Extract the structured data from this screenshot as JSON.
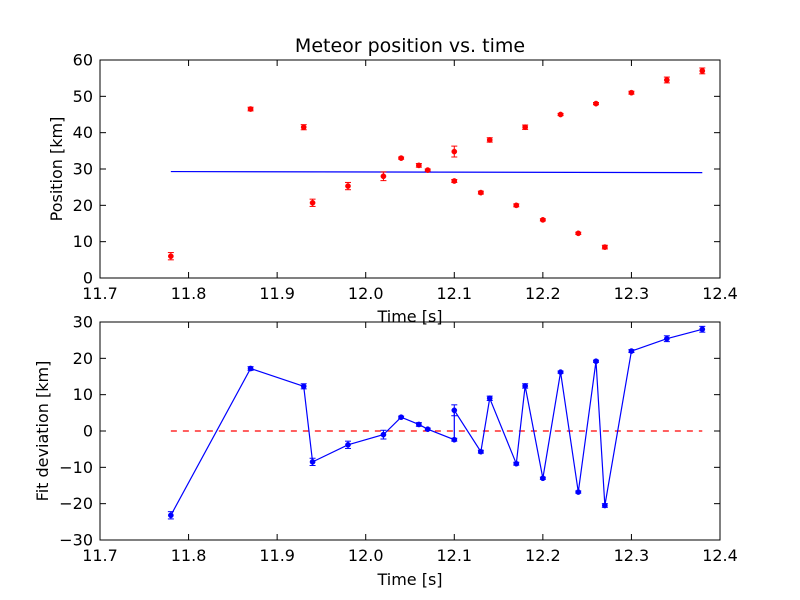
{
  "chart_data": [
    {
      "type": "scatter",
      "title": "Meteor position vs. time",
      "xlabel": "Time [s]",
      "ylabel": "Position [km]",
      "xlim": [
        11.7,
        12.4
      ],
      "ylim": [
        0,
        60
      ],
      "xticks": [
        "11.7",
        "11.8",
        "11.9",
        "12.0",
        "12.1",
        "12.2",
        "12.3",
        "12.4"
      ],
      "yticks": [
        "0",
        "10",
        "20",
        "30",
        "40",
        "50",
        "60"
      ],
      "grid": false,
      "points_color": "#ff0000",
      "fit_color": "#0000ff",
      "points": [
        {
          "x": 11.78,
          "y": 6.0,
          "err": 1.0
        },
        {
          "x": 11.87,
          "y": 46.5,
          "err": 0.5
        },
        {
          "x": 11.93,
          "y": 41.5,
          "err": 0.7
        },
        {
          "x": 11.94,
          "y": 20.7,
          "err": 1.0
        },
        {
          "x": 11.98,
          "y": 25.3,
          "err": 1.0
        },
        {
          "x": 12.02,
          "y": 28.0,
          "err": 1.2
        },
        {
          "x": 12.04,
          "y": 33.0,
          "err": 0.3
        },
        {
          "x": 12.06,
          "y": 31.0,
          "err": 0.5
        },
        {
          "x": 12.07,
          "y": 29.7,
          "err": 0.3
        },
        {
          "x": 12.1,
          "y": 34.8,
          "err": 1.5
        },
        {
          "x": 12.1,
          "y": 26.7,
          "err": 0.4
        },
        {
          "x": 12.13,
          "y": 23.5,
          "err": 0.4
        },
        {
          "x": 12.14,
          "y": 38.0,
          "err": 0.6
        },
        {
          "x": 12.17,
          "y": 20.0,
          "err": 0.4
        },
        {
          "x": 12.18,
          "y": 41.5,
          "err": 0.6
        },
        {
          "x": 12.2,
          "y": 16.0,
          "err": 0.3
        },
        {
          "x": 12.22,
          "y": 45.0,
          "err": 0.3
        },
        {
          "x": 12.24,
          "y": 12.3,
          "err": 0.3
        },
        {
          "x": 12.26,
          "y": 48.0,
          "err": 0.3
        },
        {
          "x": 12.27,
          "y": 8.5,
          "err": 0.5
        },
        {
          "x": 12.3,
          "y": 51.0,
          "err": 0.4
        },
        {
          "x": 12.34,
          "y": 54.5,
          "err": 0.8
        },
        {
          "x": 12.38,
          "y": 57.0,
          "err": 0.8
        }
      ],
      "fit_line": {
        "x": [
          11.78,
          12.38
        ],
        "y": [
          29.3,
          29.0
        ]
      }
    },
    {
      "type": "line",
      "xlabel": "Time [s]",
      "ylabel": "Fit deviation [km]",
      "xlim": [
        11.7,
        12.4
      ],
      "ylim": [
        -30,
        30
      ],
      "xticks": [
        "11.7",
        "11.8",
        "11.9",
        "12.0",
        "12.1",
        "12.2",
        "12.3",
        "12.4"
      ],
      "yticks": [
        "−30",
        "−20",
        "−10",
        "0",
        "10",
        "20",
        "30"
      ],
      "grid": false,
      "line_color": "#0000ff",
      "zero_color": "#ff0000",
      "points": [
        {
          "x": 11.78,
          "y": -23.2,
          "err": 1.0
        },
        {
          "x": 11.87,
          "y": 17.2,
          "err": 0.5
        },
        {
          "x": 11.93,
          "y": 12.3,
          "err": 0.7
        },
        {
          "x": 11.94,
          "y": -8.5,
          "err": 1.0
        },
        {
          "x": 11.98,
          "y": -3.8,
          "err": 1.0
        },
        {
          "x": 12.02,
          "y": -1.0,
          "err": 1.2
        },
        {
          "x": 12.04,
          "y": 3.8,
          "err": 0.3
        },
        {
          "x": 12.06,
          "y": 1.8,
          "err": 0.5
        },
        {
          "x": 12.07,
          "y": 0.5,
          "err": 0.3
        },
        {
          "x": 12.1,
          "y": -2.4,
          "err": 0.4
        },
        {
          "x": 12.1,
          "y": 5.7,
          "err": 1.5
        },
        {
          "x": 12.13,
          "y": -5.7,
          "err": 0.4
        },
        {
          "x": 12.14,
          "y": 9.0,
          "err": 0.6
        },
        {
          "x": 12.17,
          "y": -9.0,
          "err": 0.4
        },
        {
          "x": 12.18,
          "y": 12.4,
          "err": 0.6
        },
        {
          "x": 12.2,
          "y": -13.0,
          "err": 0.3
        },
        {
          "x": 12.22,
          "y": 16.2,
          "err": 0.3
        },
        {
          "x": 12.24,
          "y": -16.8,
          "err": 0.3
        },
        {
          "x": 12.26,
          "y": 19.2,
          "err": 0.3
        },
        {
          "x": 12.27,
          "y": -20.5,
          "err": 0.5
        },
        {
          "x": 12.3,
          "y": 22.0,
          "err": 0.4
        },
        {
          "x": 12.34,
          "y": 25.4,
          "err": 0.8
        },
        {
          "x": 12.38,
          "y": 28.0,
          "err": 0.8
        }
      ],
      "zero_line": {
        "x": [
          11.78,
          12.38
        ],
        "y": [
          0,
          0
        ]
      }
    }
  ]
}
